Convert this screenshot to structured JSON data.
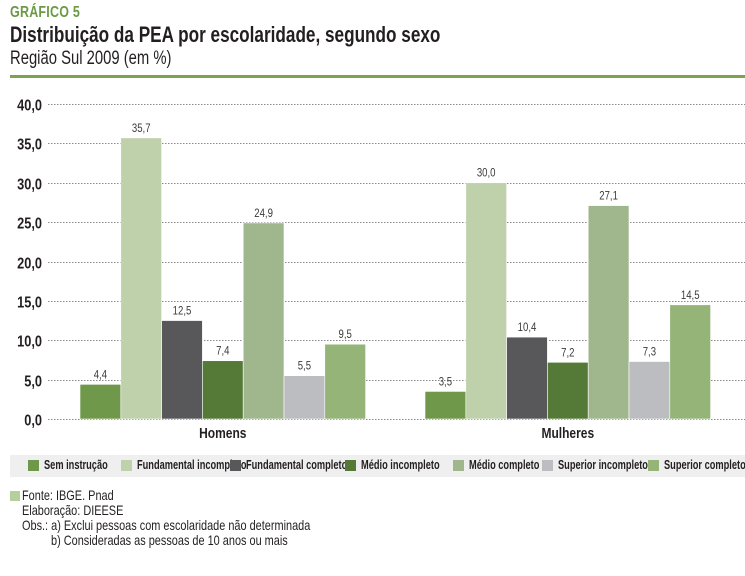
{
  "header": {
    "kicker": "GRÁFICO 5",
    "title": "Distribuição da PEA por escolaridade, segundo sexo",
    "subtitle": "Região Sul 2009 (em %)",
    "accent_color": "#7aa453"
  },
  "chart_data": {
    "type": "bar",
    "title": "Distribuição da PEA por escolaridade, segundo sexo",
    "subtitle": "Região Sul 2009 (em %)",
    "xlabel": "",
    "ylabel": "",
    "ylim": [
      0,
      40
    ],
    "yticks": [
      0,
      5,
      10,
      15,
      20,
      25,
      30,
      35,
      40
    ],
    "ytick_labels": [
      "0,0",
      "5,0",
      "10,0",
      "15,0",
      "20,0",
      "25,0",
      "30,0",
      "35,0",
      "40,0"
    ],
    "grid": "horizontal-dotted",
    "legend_position": "bottom",
    "categories": [
      "Homens",
      "Mulheres"
    ],
    "series": [
      {
        "name": "Sem instrução",
        "color": "#6f984a",
        "values": [
          4.4,
          3.5
        ],
        "labels": [
          "4,4",
          "3,5"
        ]
      },
      {
        "name": "Fundamental incompleto",
        "color": "#bfd1ab",
        "values": [
          35.7,
          30.0
        ],
        "labels": [
          "35,7",
          "30,0"
        ]
      },
      {
        "name": "Fundamental completo",
        "color": "#58585a",
        "values": [
          12.5,
          10.4
        ],
        "labels": [
          "12,5",
          "10,4"
        ]
      },
      {
        "name": "Médio incompleto",
        "color": "#557a38",
        "values": [
          7.4,
          7.2
        ],
        "labels": [
          "7,4",
          "7,2"
        ]
      },
      {
        "name": "Médio completo",
        "color": "#a0b68c",
        "values": [
          24.9,
          27.1
        ],
        "labels": [
          "24,9",
          "27,1"
        ]
      },
      {
        "name": "Superior incompleto",
        "color": "#bcbdc0",
        "values": [
          5.5,
          7.3
        ],
        "labels": [
          "5,5",
          "7,3"
        ]
      },
      {
        "name": "Superior completo",
        "color": "#95b478",
        "values": [
          9.5,
          14.5
        ],
        "labels": [
          "9,5",
          "14,5"
        ]
      }
    ]
  },
  "notes": {
    "source": "Fonte: IBGE. Pnad",
    "elaboration": "Elaboração: DIEESE",
    "obs_a": "Obs.: a) Exclui pessoas com escolaridade não determinada",
    "obs_b": "b) Consideradas as pessoas de 10 anos ou mais",
    "swatch_color": "#b5cf9d"
  }
}
